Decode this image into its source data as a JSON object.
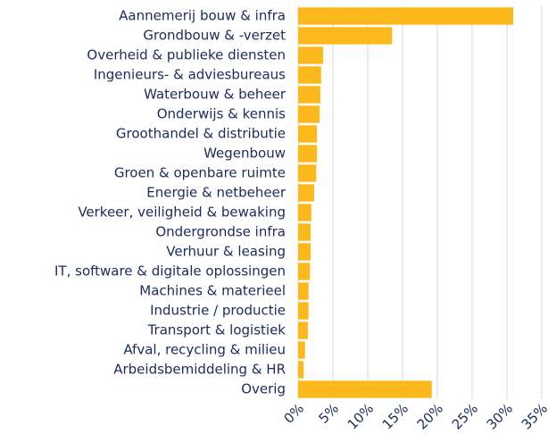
{
  "chart_data": {
    "type": "barh",
    "categories": [
      "Aannemerij bouw & infra",
      "Grondbouw & -verzet",
      "Overheid & publieke diensten",
      "Ingenieurs- & adviesbureaus",
      "Waterbouw & beheer",
      "Onderwijs & kennis",
      "Groothandel & distributie",
      "Wegenbouw",
      "Groen & openbare ruimte",
      "Energie & netbeheer",
      "Verkeer, veiligheid & bewaking",
      "Ondergrondse infra",
      "Verhuur & leasing",
      "IT, software & digitale oplossingen",
      "Machines & materieel",
      "Industrie / productie",
      "Transport & logistiek",
      "Afval, recycling & milieu",
      "Arbeidsbemiddeling & HR",
      "Overig"
    ],
    "values": [
      30.9,
      13.5,
      3.6,
      3.3,
      3.2,
      3.1,
      2.7,
      2.7,
      2.6,
      2.3,
      1.9,
      1.8,
      1.8,
      1.7,
      1.5,
      1.5,
      1.4,
      1.0,
      0.8,
      19.2
    ],
    "color": "#fbb91c",
    "xlim": [
      0,
      35
    ],
    "xticks": [
      {
        "value": 0,
        "label": "0%"
      },
      {
        "value": 5,
        "label": "5%"
      },
      {
        "value": 10,
        "label": "10%"
      },
      {
        "value": 15,
        "label": "15%"
      },
      {
        "value": 20,
        "label": "20%"
      },
      {
        "value": 25,
        "label": "25%"
      },
      {
        "value": 30,
        "label": "30%"
      },
      {
        "value": 35,
        "label": "35%"
      }
    ],
    "grid": true
  }
}
